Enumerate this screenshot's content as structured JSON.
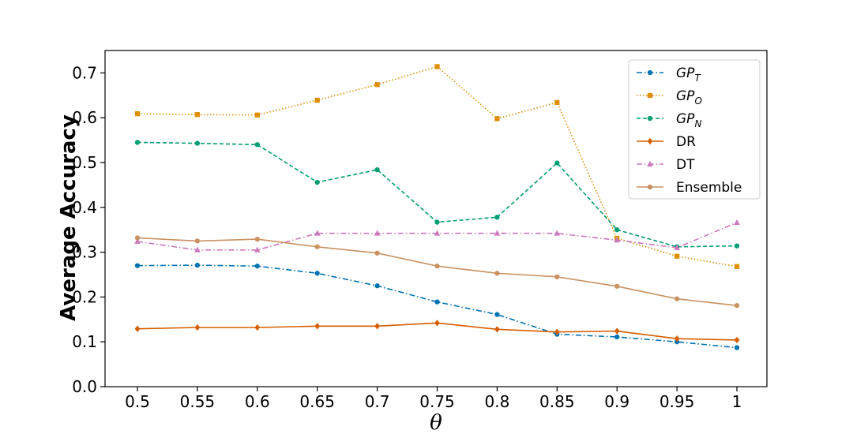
{
  "chart_data": {
    "type": "line",
    "title": "",
    "xlabel": "θ",
    "ylabel": "Average Accuracy",
    "x": [
      "0.5",
      "0.55",
      "0.6",
      "0.65",
      "0.7",
      "0.75",
      "0.8",
      "0.85",
      "0.9",
      "0.95",
      "1"
    ],
    "ylim": [
      0.0,
      0.75
    ],
    "yticks": [
      "0.0",
      "0.1",
      "0.2",
      "0.3",
      "0.4",
      "0.5",
      "0.6",
      "0.7"
    ],
    "grid": false,
    "legend_position": "top-right",
    "series": [
      {
        "name": "GP_T",
        "label_main": "GP",
        "label_sub": "T",
        "color": "#0173b2",
        "marker": "circle",
        "linestyle": "dashdot",
        "values": [
          0.27,
          0.271,
          0.269,
          0.253,
          0.225,
          0.189,
          0.161,
          0.117,
          0.111,
          0.1,
          0.087
        ]
      },
      {
        "name": "GP_O",
        "label_main": "GP",
        "label_sub": "O",
        "color": "#de8f05",
        "marker": "square",
        "linestyle": "dotted",
        "values": [
          0.609,
          0.607,
          0.606,
          0.639,
          0.674,
          0.714,
          0.598,
          0.634,
          0.331,
          0.291,
          0.268
        ]
      },
      {
        "name": "GP_N",
        "label_main": "GP",
        "label_sub": "N",
        "color": "#029e73",
        "marker": "circle",
        "linestyle": "dashed",
        "values": [
          0.545,
          0.543,
          0.54,
          0.456,
          0.484,
          0.367,
          0.378,
          0.499,
          0.35,
          0.312,
          0.314
        ]
      },
      {
        "name": "DR",
        "label_main": "DR",
        "label_sub": "",
        "color": "#d55e00",
        "marker": "diamond",
        "linestyle": "solid",
        "values": [
          0.129,
          0.132,
          0.132,
          0.135,
          0.135,
          0.142,
          0.128,
          0.122,
          0.124,
          0.107,
          0.104
        ]
      },
      {
        "name": "DT",
        "label_main": "DT",
        "label_sub": "",
        "color": "#cc78bc",
        "marker": "triangle",
        "linestyle": "dashdot",
        "values": [
          0.324,
          0.305,
          0.305,
          0.342,
          0.342,
          0.342,
          0.342,
          0.342,
          0.327,
          0.31,
          0.366
        ]
      },
      {
        "name": "Ensemble",
        "label_main": "Ensemble",
        "label_sub": "",
        "color": "#ca9161",
        "marker": "circle",
        "linestyle": "solid",
        "values": [
          0.332,
          0.325,
          0.329,
          0.312,
          0.298,
          0.269,
          0.253,
          0.245,
          0.224,
          0.196,
          0.181
        ]
      }
    ]
  }
}
